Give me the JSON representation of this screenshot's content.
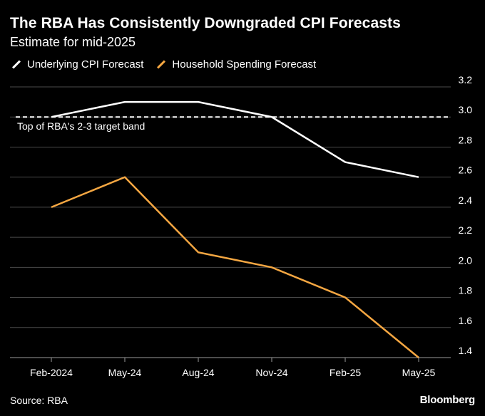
{
  "chart_data": {
    "type": "line",
    "title": "The RBA Has Consistently Downgraded CPI Forecasts",
    "subtitle": "Estimate for mid-2025",
    "categories": [
      "Feb-2024",
      "May-24",
      "Aug-24",
      "Nov-24",
      "Feb-25",
      "May-25"
    ],
    "series": [
      {
        "name": "Underlying CPI Forecast",
        "color": "#ffffff",
        "values": [
          3.0,
          3.1,
          3.1,
          3.0,
          2.7,
          2.6
        ]
      },
      {
        "name": "Household Spending Forecast",
        "color": "#f5a742",
        "values": [
          2.4,
          2.6,
          2.1,
          2.0,
          1.8,
          1.4
        ]
      }
    ],
    "ylim": [
      1.4,
      3.2
    ],
    "yticks": [
      "3.2",
      "3.0",
      "2.8",
      "2.6",
      "2.4",
      "2.2",
      "2.0",
      "1.8",
      "1.6",
      "1.4"
    ],
    "reference_line": {
      "value": 3.0,
      "label": "Top of RBA's 2-3 target band",
      "style": "dashed"
    },
    "grid": true,
    "legend_position": "top-left",
    "xlabel": "",
    "ylabel": ""
  },
  "footer": {
    "source": "Source: RBA",
    "brand": "Bloomberg"
  }
}
